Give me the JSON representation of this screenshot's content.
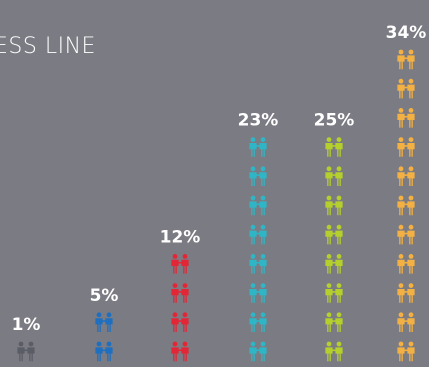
{
  "title": "ESS LINE",
  "chart_data": {
    "type": "bar",
    "title": "ESS LINE",
    "categories": [
      "",
      "",
      "",
      "",
      "",
      ""
    ],
    "values": [
      1,
      5,
      12,
      23,
      25,
      34
    ],
    "labels": [
      "1%",
      "5%",
      "12%",
      "23%",
      "25%",
      "34%"
    ],
    "icons_per_column": [
      1,
      2,
      4,
      8,
      8,
      11
    ],
    "colors": [
      "#5b5d66",
      "#1e6fc0",
      "#e32636",
      "#2fb6c6",
      "#b5cf2c",
      "#f3b144"
    ],
    "icon": "two-people-icon",
    "xlabel": "",
    "ylabel": ""
  }
}
